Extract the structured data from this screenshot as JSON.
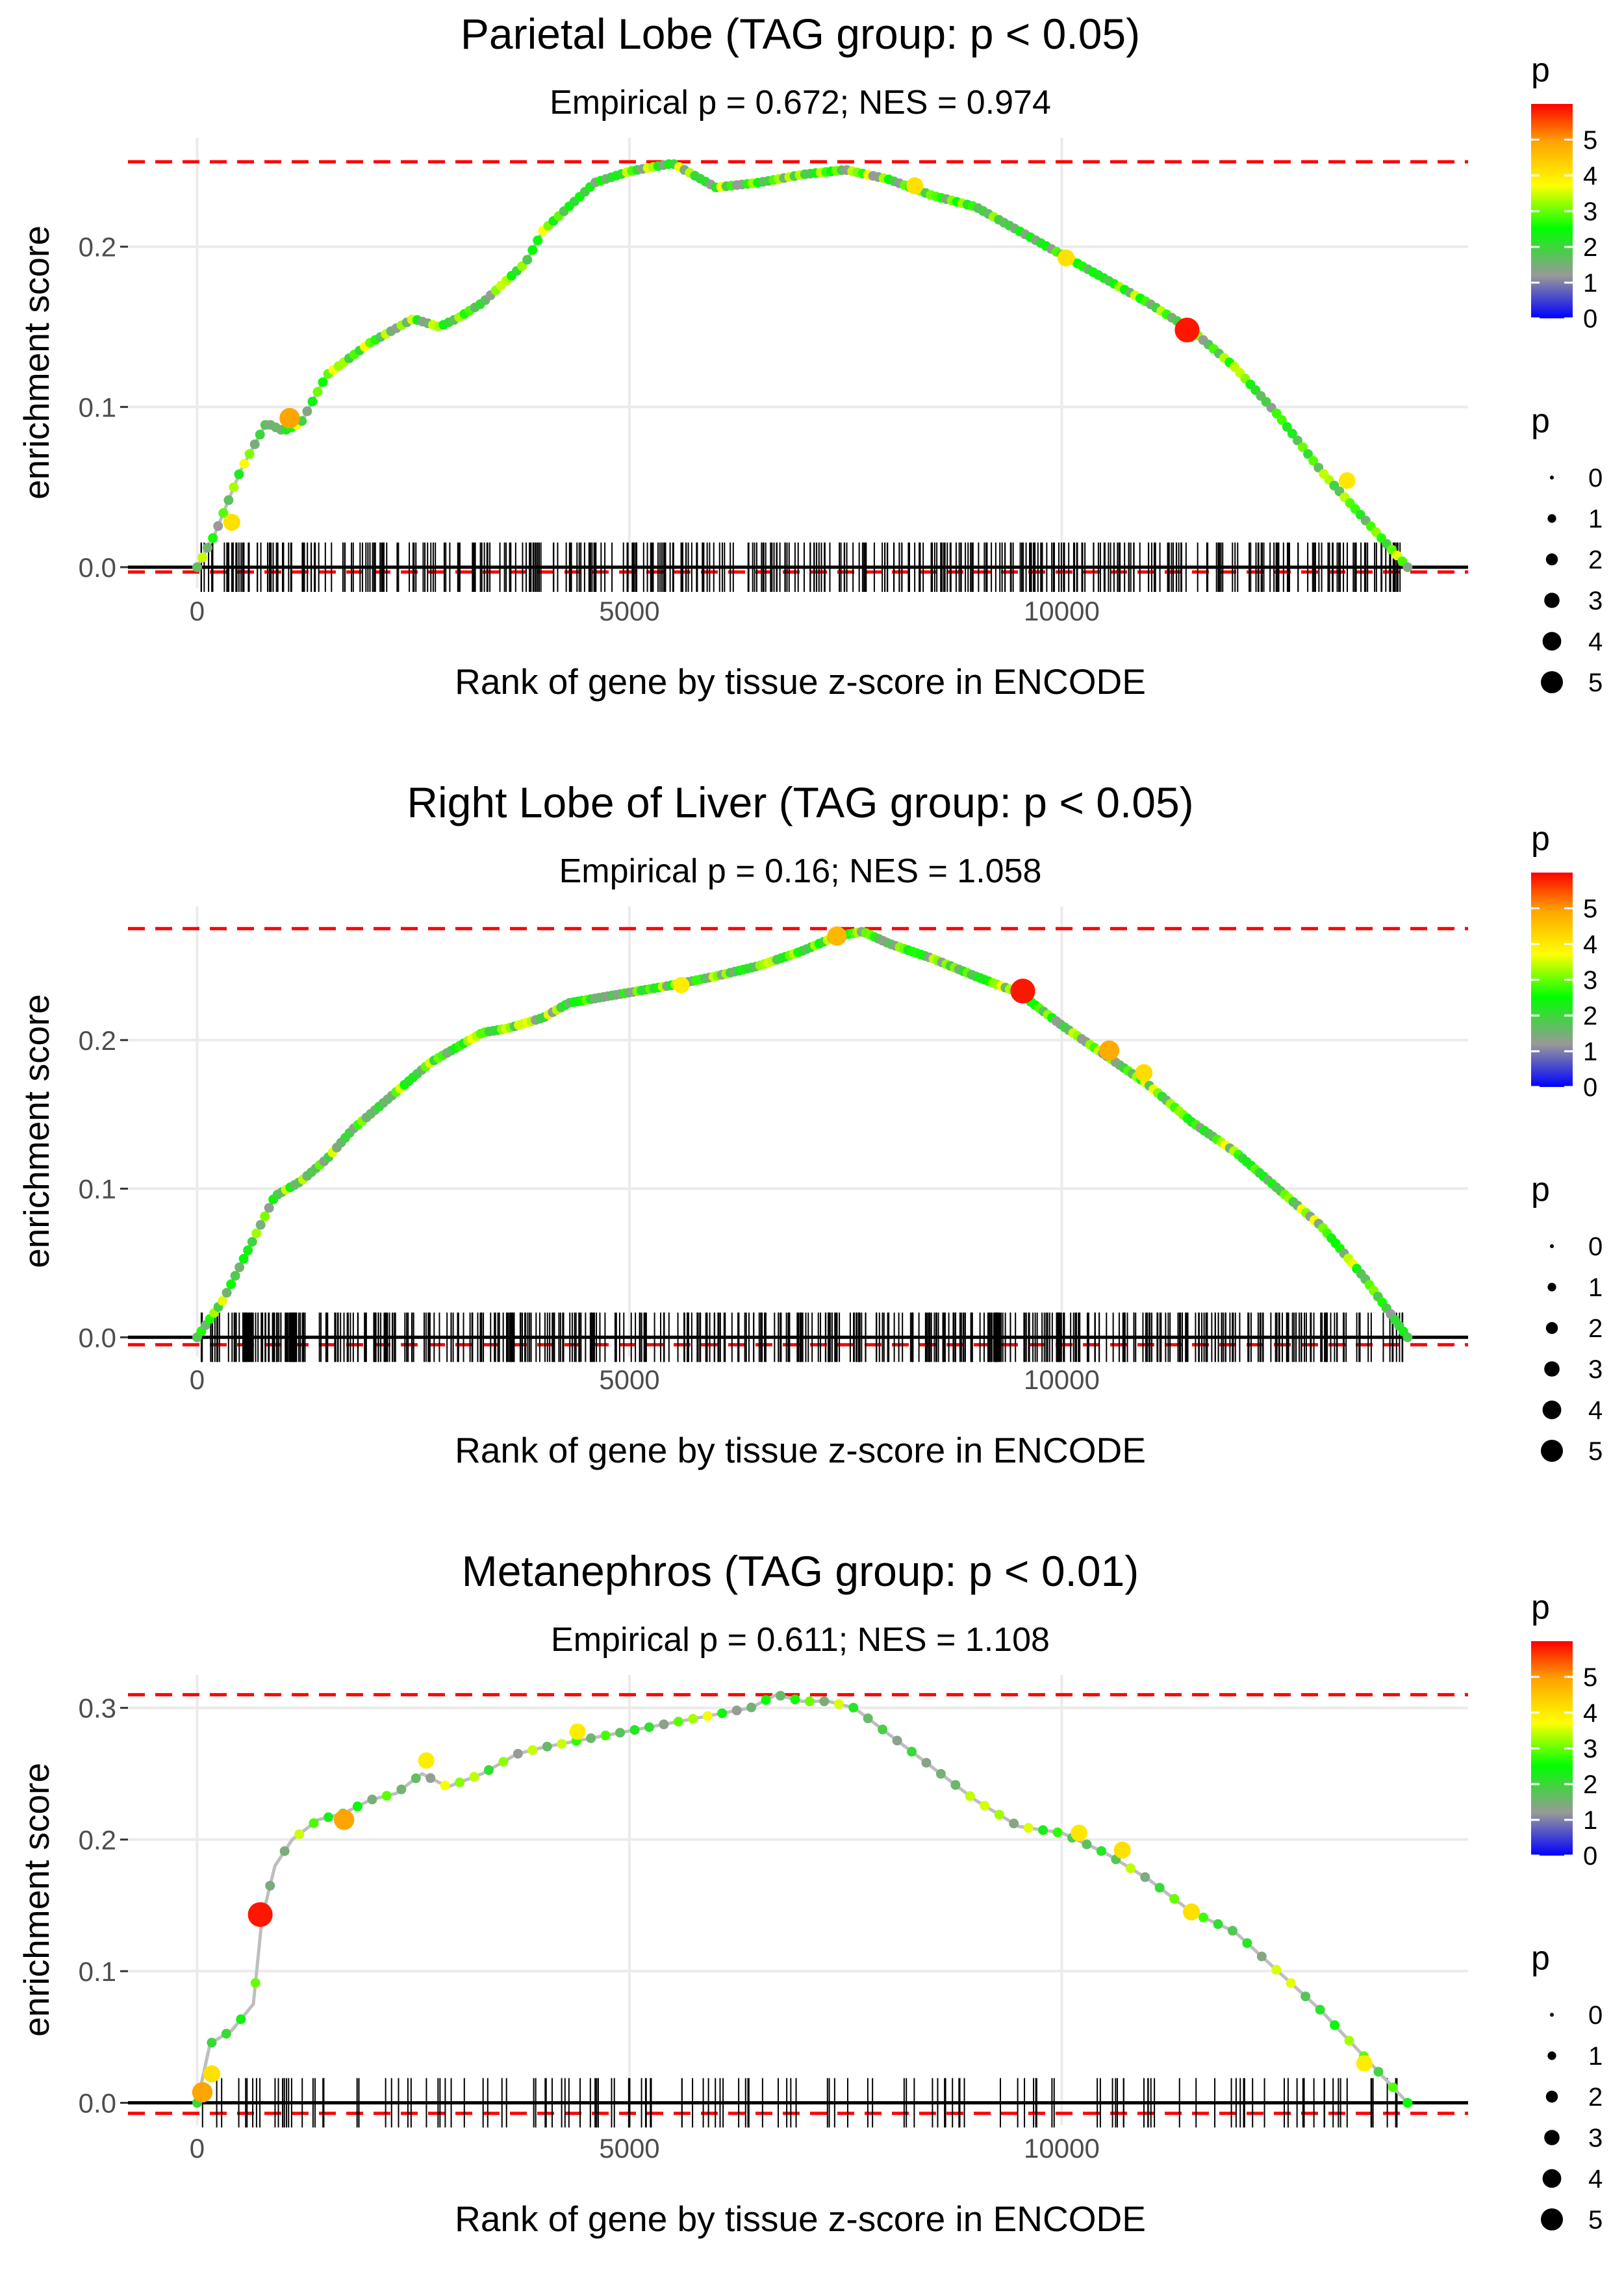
{
  "legend": {
    "color_title": "p",
    "size_title": "p",
    "color_ticks": [
      "5",
      "4",
      "3",
      "2",
      "1",
      "0"
    ],
    "size_ticks": [
      "0",
      "1",
      "2",
      "3",
      "4",
      "5"
    ],
    "gradient_colors": [
      "#FF0000",
      "#FFA500",
      "#FFFF00",
      "#00FF00",
      "#999999",
      "#0000FF"
    ]
  },
  "colors": {
    "line": "#BEBEBE",
    "rug": "#000000",
    "ref_dashed": "#FF0000",
    "grid": "#EBEBEB"
  },
  "chart_data": [
    {
      "type": "line",
      "title": "Parietal Lobe (TAG group: p < 0.05)",
      "subtitle": "Empirical p = 0.672; NES = 0.974",
      "xlabel": "Rank of gene by tissue z-score in ENCODE",
      "ylabel": "enrichment score",
      "xlim": [
        -800,
        14700
      ],
      "ylim": [
        -0.013,
        0.268
      ],
      "x_ticks": [
        0,
        5000,
        10000
      ],
      "x_tick_labels": [
        "0",
        "5000",
        "10000"
      ],
      "y_ticks": [
        0.0,
        0.1,
        0.2
      ],
      "y_tick_labels": [
        "0.0",
        "0.1",
        "0.2"
      ],
      "max_es": 0.253,
      "min_es": -0.003,
      "rug_n": 420,
      "rug_seed": 11,
      "series": [
        {
          "name": "running enrichment score",
          "x": [
            0,
            200,
            500,
            800,
            1000,
            1200,
            1500,
            2000,
            2500,
            2800,
            3000,
            3300,
            3600,
            3800,
            4000,
            4300,
            4600,
            5000,
            5300,
            5500,
            6000,
            6500,
            7000,
            7500,
            8000,
            8500,
            9000,
            9500,
            10000,
            10500,
            11000,
            11500,
            12000,
            12500,
            13000,
            13500,
            14000
          ],
          "y": [
            0.0,
            0.02,
            0.06,
            0.09,
            0.085,
            0.09,
            0.12,
            0.14,
            0.155,
            0.15,
            0.155,
            0.165,
            0.18,
            0.19,
            0.21,
            0.225,
            0.24,
            0.247,
            0.25,
            0.252,
            0.237,
            0.24,
            0.245,
            0.248,
            0.242,
            0.232,
            0.225,
            0.21,
            0.195,
            0.18,
            0.165,
            0.148,
            0.125,
            0.095,
            0.06,
            0.03,
            0.0
          ]
        }
      ],
      "highlights": [
        {
          "x": 1070,
          "y": 0.093,
          "p": 4.5
        },
        {
          "x": 400,
          "y": 0.028,
          "p": 3.5
        },
        {
          "x": 8300,
          "y": 0.238,
          "p": 3.5
        },
        {
          "x": 10050,
          "y": 0.193,
          "p": 3.5
        },
        {
          "x": 11450,
          "y": 0.148,
          "p": 5.8
        },
        {
          "x": 13300,
          "y": 0.054,
          "p": 3.4
        }
      ]
    },
    {
      "type": "line",
      "title": "Right Lobe of Liver (TAG group: p < 0.05)",
      "subtitle": "Empirical p = 0.16; NES = 1.058",
      "xlabel": "Rank of gene by tissue z-score in ENCODE",
      "ylabel": "enrichment score",
      "xlim": [
        -800,
        14700
      ],
      "ylim": [
        -0.013,
        0.29
      ],
      "x_ticks": [
        0,
        5000,
        10000
      ],
      "x_tick_labels": [
        "0",
        "5000",
        "10000"
      ],
      "y_ticks": [
        0.0,
        0.1,
        0.2
      ],
      "y_tick_labels": [
        "0.0",
        "0.1",
        "0.2"
      ],
      "max_es": 0.275,
      "min_es": -0.005,
      "rug_n": 520,
      "rug_seed": 23,
      "series": [
        {
          "name": "running enrichment score",
          "x": [
            0,
            300,
            600,
            900,
            1200,
            1500,
            1800,
            2100,
            2400,
            2700,
            3000,
            3300,
            3600,
            4000,
            4300,
            4600,
            5000,
            5500,
            6000,
            6500,
            7000,
            7400,
            7700,
            8000,
            8500,
            9000,
            9500,
            10000,
            10500,
            11000,
            11500,
            12000,
            12500,
            13000,
            13500,
            14000
          ],
          "y": [
            0.0,
            0.025,
            0.06,
            0.095,
            0.105,
            0.12,
            0.14,
            0.155,
            0.17,
            0.185,
            0.195,
            0.205,
            0.208,
            0.215,
            0.225,
            0.228,
            0.232,
            0.237,
            0.243,
            0.25,
            0.26,
            0.27,
            0.273,
            0.265,
            0.255,
            0.243,
            0.232,
            0.21,
            0.19,
            0.17,
            0.145,
            0.125,
            0.1,
            0.075,
            0.04,
            0.0
          ]
        }
      ],
      "highlights": [
        {
          "x": 5600,
          "y": 0.237,
          "p": 3.3
        },
        {
          "x": 7400,
          "y": 0.27,
          "p": 4.2
        },
        {
          "x": 9550,
          "y": 0.233,
          "p": 5.8
        },
        {
          "x": 10550,
          "y": 0.193,
          "p": 4.4
        },
        {
          "x": 10950,
          "y": 0.178,
          "p": 3.6
        }
      ]
    },
    {
      "type": "line",
      "title": "Metanephros (TAG group: p < 0.01)",
      "subtitle": "Empirical p = 0.611; NES = 1.108",
      "xlabel": "Rank of gene by tissue z-score in ENCODE",
      "ylabel": "enrichment score",
      "xlim": [
        -800,
        14700
      ],
      "ylim": [
        -0.017,
        0.325
      ],
      "x_ticks": [
        0,
        5000,
        10000
      ],
      "x_tick_labels": [
        "0",
        "5000",
        "10000"
      ],
      "y_ticks": [
        0.0,
        0.1,
        0.2,
        0.3
      ],
      "y_tick_labels": [
        "0.0",
        "0.1",
        "0.2",
        "0.3"
      ],
      "max_es": 0.31,
      "min_es": -0.008,
      "rug_n": 150,
      "rug_seed": 37,
      "series": [
        {
          "name": "running enrichment score",
          "x": [
            0,
            150,
            400,
            650,
            750,
            900,
            1100,
            1400,
            1700,
            2000,
            2300,
            2600,
            2900,
            3300,
            3700,
            4000,
            4400,
            4800,
            5200,
            5600,
            6000,
            6400,
            6700,
            7000,
            7300,
            7600,
            8000,
            8500,
            9000,
            9500,
            10000,
            10500,
            11000,
            11500,
            12000,
            12500,
            13000,
            13500,
            14000
          ],
          "y": [
            0.0,
            0.045,
            0.055,
            0.075,
            0.14,
            0.18,
            0.2,
            0.215,
            0.22,
            0.23,
            0.235,
            0.25,
            0.24,
            0.25,
            0.265,
            0.27,
            0.275,
            0.28,
            0.285,
            0.29,
            0.295,
            0.3,
            0.31,
            0.305,
            0.305,
            0.3,
            0.28,
            0.255,
            0.23,
            0.21,
            0.205,
            0.19,
            0.17,
            0.145,
            0.13,
            0.1,
            0.07,
            0.035,
            0.0
          ]
        }
      ],
      "highlights": [
        {
          "x": 60,
          "y": 0.008,
          "p": 4.5
        },
        {
          "x": 170,
          "y": 0.022,
          "p": 3.5
        },
        {
          "x": 730,
          "y": 0.143,
          "p": 5.8
        },
        {
          "x": 1700,
          "y": 0.215,
          "p": 4.5
        },
        {
          "x": 2650,
          "y": 0.26,
          "p": 3.3
        },
        {
          "x": 4400,
          "y": 0.282,
          "p": 3.3
        },
        {
          "x": 10200,
          "y": 0.205,
          "p": 3.4
        },
        {
          "x": 10700,
          "y": 0.192,
          "p": 3.5
        },
        {
          "x": 11500,
          "y": 0.145,
          "p": 3.5
        },
        {
          "x": 13500,
          "y": 0.03,
          "p": 3.3
        }
      ]
    }
  ]
}
